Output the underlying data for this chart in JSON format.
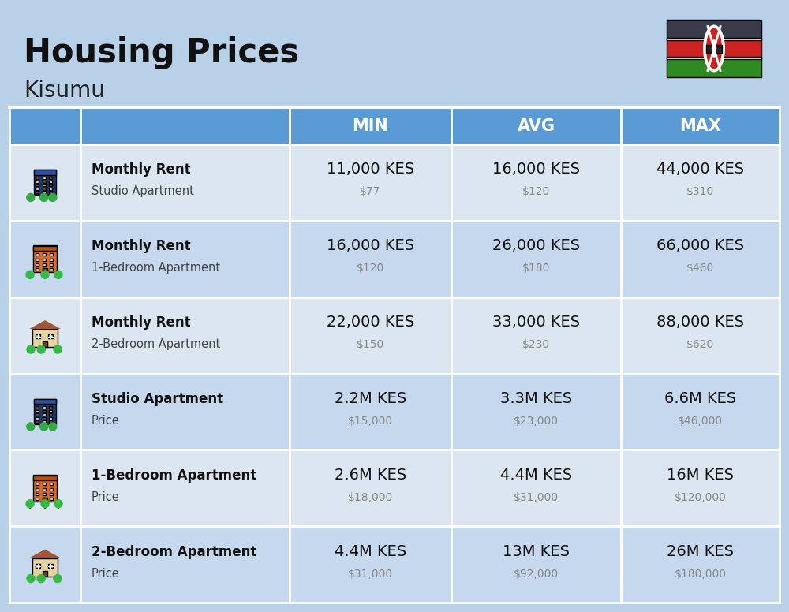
{
  "title": "Housing Prices",
  "subtitle": "Kisumu",
  "background_color": "#b8d0e8",
  "header_bg_color": "#5b9bd5",
  "header_text_color": "#ffffff",
  "row_colors": [
    "#dce6f1",
    "#c5d8ed"
  ],
  "rows": [
    {
      "icon_type": "studio_blue",
      "bold_text": "Monthly Rent",
      "sub_text": "Studio Apartment",
      "min_kes": "11,000 KES",
      "min_usd": "$77",
      "avg_kes": "16,000 KES",
      "avg_usd": "$120",
      "max_kes": "44,000 KES",
      "max_usd": "$310"
    },
    {
      "icon_type": "one_bed_orange",
      "bold_text": "Monthly Rent",
      "sub_text": "1-Bedroom Apartment",
      "min_kes": "16,000 KES",
      "min_usd": "$120",
      "avg_kes": "26,000 KES",
      "avg_usd": "$180",
      "max_kes": "66,000 KES",
      "max_usd": "$460"
    },
    {
      "icon_type": "two_bed_beige",
      "bold_text": "Monthly Rent",
      "sub_text": "2-Bedroom Apartment",
      "min_kes": "22,000 KES",
      "min_usd": "$150",
      "avg_kes": "33,000 KES",
      "avg_usd": "$230",
      "max_kes": "88,000 KES",
      "max_usd": "$620"
    },
    {
      "icon_type": "studio_blue",
      "bold_text": "Studio Apartment",
      "sub_text": "Price",
      "min_kes": "2.2M KES",
      "min_usd": "$15,000",
      "avg_kes": "3.3M KES",
      "avg_usd": "$23,000",
      "max_kes": "6.6M KES",
      "max_usd": "$46,000"
    },
    {
      "icon_type": "one_bed_orange",
      "bold_text": "1-Bedroom Apartment",
      "sub_text": "Price",
      "min_kes": "2.6M KES",
      "min_usd": "$18,000",
      "avg_kes": "4.4M KES",
      "avg_usd": "$31,000",
      "max_kes": "16M KES",
      "max_usd": "$120,000"
    },
    {
      "icon_type": "two_bed_beige",
      "bold_text": "2-Bedroom Apartment",
      "sub_text": "Price",
      "min_kes": "4.4M KES",
      "min_usd": "$31,000",
      "avg_kes": "13M KES",
      "avg_usd": "$92,000",
      "max_kes": "26M KES",
      "max_usd": "$180,000"
    }
  ]
}
